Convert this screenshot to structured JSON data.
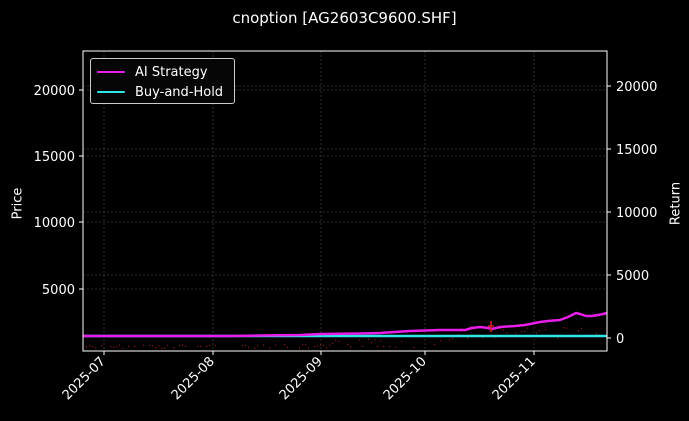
{
  "title": "cnoption [AG2603C9600.SHF]",
  "axes": {
    "left_label": "Price",
    "right_label": "Return",
    "left_ticks": [
      "20000",
      "15000",
      "10000",
      "5000"
    ],
    "right_ticks": [
      "20000",
      "15000",
      "10000",
      "5000",
      "0"
    ],
    "x_ticks": [
      "2025-07",
      "2025-08",
      "2025-09",
      "2025-10",
      "2025-11"
    ]
  },
  "legend": {
    "items": [
      {
        "label": "AI Strategy",
        "color": "#e81ee8"
      },
      {
        "label": "Buy-and-Hold",
        "color": "#2ee6e6"
      }
    ]
  },
  "colors": {
    "background": "#000000",
    "frame": "#ffffff",
    "grid": "#3a3a3a",
    "ai_strategy": "#e81ee8",
    "buy_and_hold": "#2ee6e6",
    "price_dots": "#8b1a1a"
  },
  "chart_data": {
    "type": "line",
    "title": "cnoption [AG2603C9600.SHF]",
    "xlabel": "",
    "ylabel": "Price",
    "ylabel_right": "Return",
    "x": [
      "2025-06-25",
      "2025-07-15",
      "2025-08-01",
      "2025-08-15",
      "2025-09-01",
      "2025-09-15",
      "2025-10-01",
      "2025-10-10",
      "2025-10-20",
      "2025-11-01",
      "2025-11-10",
      "2025-11-15",
      "2025-11-20",
      "2025-11-24"
    ],
    "series": [
      {
        "name": "AI Strategy",
        "axis": "right",
        "values": [
          0,
          0,
          20,
          150,
          400,
          550,
          650,
          800,
          1100,
          1400,
          1650,
          2000,
          1800,
          2000
        ]
      },
      {
        "name": "Buy-and-Hold",
        "axis": "right",
        "values": [
          0,
          0,
          0,
          0,
          0,
          0,
          0,
          0,
          0,
          0,
          0,
          0,
          0,
          0
        ]
      }
    ],
    "x_ticks": [
      "2025-07",
      "2025-08",
      "2025-09",
      "2025-10",
      "2025-11"
    ],
    "ylim_left": [
      500,
      23000
    ],
    "yticks_left": [
      5000,
      10000,
      15000,
      20000
    ],
    "ylim_right": [
      -1000,
      22800
    ],
    "yticks_right": [
      0,
      5000,
      10000,
      15000,
      20000
    ],
    "grid": true,
    "legend_position": "upper left"
  }
}
